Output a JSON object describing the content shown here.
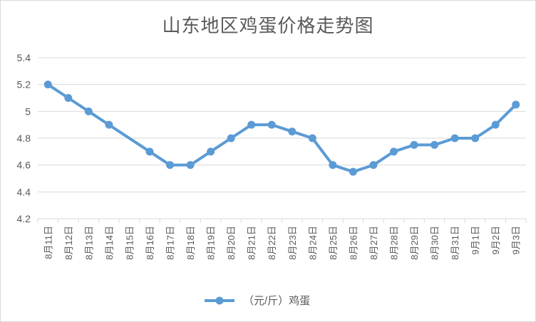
{
  "chart_data": {
    "type": "line",
    "title": "山东地区鸡蛋价格走势图",
    "categories": [
      "8月11日",
      "8月12日",
      "8月13日",
      "8月14日",
      "8月15日",
      "8月16日",
      "8月17日",
      "8月18日",
      "8月19日",
      "8月20日",
      "8月21日",
      "8月22日",
      "8月23日",
      "8月24日",
      "8月25日",
      "8月26日",
      "8月27日",
      "8月28日",
      "8月29日",
      "8月30日",
      "8月31日",
      "9月1日",
      "9月2日",
      "9月3日"
    ],
    "series": [
      {
        "name": "（元/斤）鸡蛋",
        "values": [
          5.2,
          5.1,
          5.0,
          4.9,
          null,
          4.7,
          4.6,
          4.6,
          4.7,
          4.8,
          4.9,
          4.9,
          4.85,
          4.8,
          4.6,
          4.55,
          4.6,
          4.7,
          4.75,
          4.75,
          4.8,
          4.8,
          4.9,
          5.05
        ]
      }
    ],
    "ylim": [
      4.2,
      5.4
    ],
    "yticks": [
      "4.2",
      "4.4",
      "4.6",
      "4.8",
      "5",
      "5.2",
      "5.4"
    ],
    "grid": true,
    "legend_position": "bottom",
    "colors": {
      "series": "#5b9bd5",
      "grid": "#d9d9d9",
      "text": "#595959"
    }
  }
}
